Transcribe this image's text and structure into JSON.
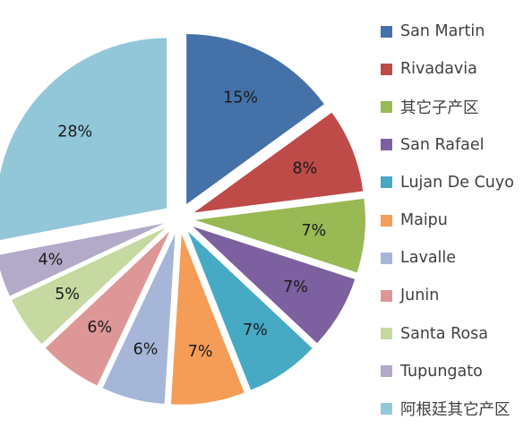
{
  "chart_data": {
    "type": "pie",
    "start_angle_deg": 0,
    "direction": "clockwise",
    "legend_position": "right",
    "series": [
      {
        "name": "San Martin",
        "value": 15,
        "label": "15%",
        "color": "#4472A8"
      },
      {
        "name": "Rivadavia",
        "value": 8,
        "label": "8%",
        "color": "#BE4B48"
      },
      {
        "name": "其它子产区",
        "value": 7,
        "label": "7%",
        "color": "#98B954"
      },
      {
        "name": "San Rafael",
        "value": 7,
        "label": "7%",
        "color": "#7D60A0"
      },
      {
        "name": "Lujan De Cuyo",
        "value": 7,
        "label": "7%",
        "color": "#46AAC4"
      },
      {
        "name": "Maipu",
        "value": 7,
        "label": "7%",
        "color": "#F59D56"
      },
      {
        "name": "Lavalle",
        "value": 6,
        "label": "6%",
        "color": "#A5B6D9"
      },
      {
        "name": "Junin",
        "value": 6,
        "label": "6%",
        "color": "#DE9797"
      },
      {
        "name": "Santa Rosa",
        "value": 5,
        "label": "5%",
        "color": "#C6D9A0"
      },
      {
        "name": "Tupungato",
        "value": 4,
        "label": "4%",
        "color": "#B3A9C9"
      },
      {
        "name": "阿根廷其它产区",
        "value": 28,
        "label": "28%",
        "color": "#92C7D9"
      }
    ]
  }
}
